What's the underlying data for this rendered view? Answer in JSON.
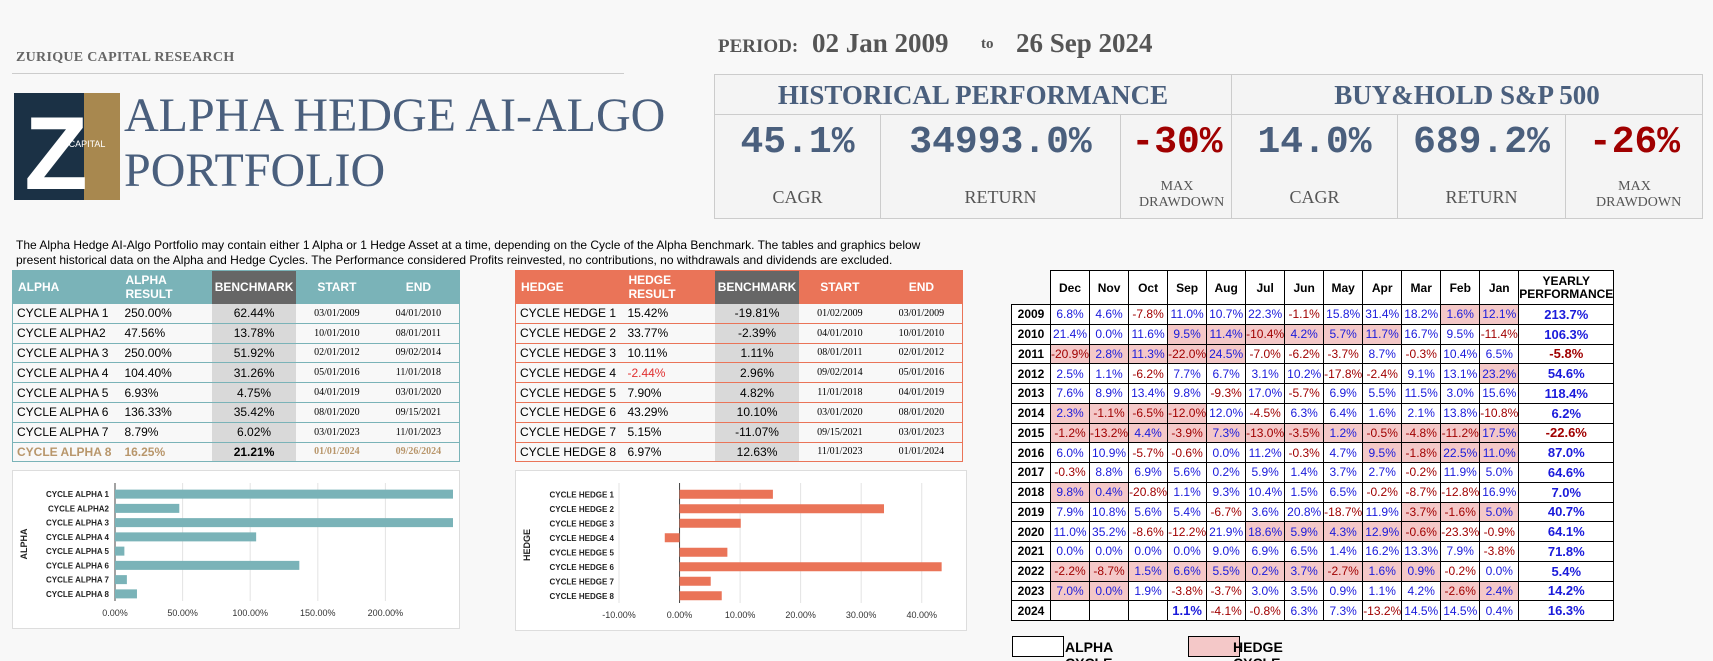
{
  "firm": "ZURIQUE CAPITAL RESEARCH",
  "logo": {
    "letter": "Z",
    "word": "CAPITAL"
  },
  "title": "ALPHA HEDGE AI-ALGO PORTFOLIO",
  "period": {
    "label": "PERIOD:",
    "start": "02 Jan 2009",
    "to": "to",
    "end": "26 Sep 2024"
  },
  "historical": {
    "title": "HISTORICAL PERFORMANCE",
    "cagr": "45.1%",
    "cagr_label": "CAGR",
    "return": "34993.0%",
    "return_label": "RETURN",
    "maxdd": "-30%",
    "maxdd_label": "MAX DRAWDOWN"
  },
  "buyhold": {
    "title": "BUY&HOLD S&P 500",
    "cagr": "14.0%",
    "cagr_label": "CAGR",
    "return": "689.2%",
    "return_label": "RETURN",
    "maxdd": "-26%",
    "maxdd_label": "MAX DRAWDOWN"
  },
  "description": "The Alpha Hedge AI-Algo Portfolio may contain either 1 Alpha or 1 Hedge Asset at a time, depending on the Cycle of the Alpha Benchmark. The tables and graphics below present historical data on the Alpha and Hedge Cycles. The Performance considered Profits reinvested, no contributions, no withdrawals and dividends are excluded.",
  "alpha_table": {
    "headers": [
      "ALPHA",
      "ALPHA RESULT",
      "BENCHMARK",
      "START",
      "END"
    ],
    "rows": [
      [
        "CYCLE ALPHA 1",
        "250.00%",
        "62.44%",
        "03/01/2009",
        "04/01/2010"
      ],
      [
        "CYCLE ALPHA2",
        "47.56%",
        "13.78%",
        "10/01/2010",
        "08/01/2011"
      ],
      [
        "CYCLE ALPHA 3",
        "250.00%",
        "51.92%",
        "02/01/2012",
        "09/02/2014"
      ],
      [
        "CYCLE ALPHA 4",
        "104.40%",
        "31.26%",
        "05/01/2016",
        "11/01/2018"
      ],
      [
        "CYCLE ALPHA 5",
        "6.93%",
        "4.75%",
        "04/01/2019",
        "03/01/2020"
      ],
      [
        "CYCLE ALPHA 6",
        "136.33%",
        "35.42%",
        "08/01/2020",
        "09/15/2021"
      ],
      [
        "CYCLE ALPHA 7",
        "8.79%",
        "6.02%",
        "03/01/2023",
        "11/01/2023"
      ],
      [
        "CYCLE ALPHA 8",
        "16.25%",
        "21.21%",
        "01/01/2024",
        "09/26/2024"
      ]
    ]
  },
  "hedge_table": {
    "headers": [
      "HEDGE",
      "HEDGE RESULT",
      "BENCHMARK",
      "START",
      "END"
    ],
    "rows": [
      [
        "CYCLE HEDGE 1",
        "15.42%",
        "-19.81%",
        "01/02/2009",
        "03/01/2009"
      ],
      [
        "CYCLE HEDGE 2",
        "33.77%",
        "-2.39%",
        "04/01/2010",
        "10/01/2010"
      ],
      [
        "CYCLE HEDGE 3",
        "10.11%",
        "1.11%",
        "08/01/2011",
        "02/01/2012"
      ],
      [
        "CYCLE HEDGE 4",
        "-2.44%",
        "2.96%",
        "09/02/2014",
        "05/01/2016"
      ],
      [
        "CYCLE HEDGE 5",
        "7.90%",
        "4.82%",
        "11/01/2018",
        "04/01/2019"
      ],
      [
        "CYCLE HEDGE 6",
        "43.29%",
        "10.10%",
        "03/01/2020",
        "08/01/2020"
      ],
      [
        "CYCLE HEDGE 7",
        "5.15%",
        "-11.07%",
        "09/15/2021",
        "03/01/2023"
      ],
      [
        "CYCLE HEDGE 8",
        "6.97%",
        "12.63%",
        "11/01/2023",
        "01/01/2024"
      ]
    ]
  },
  "chart_data": [
    {
      "type": "bar",
      "orientation": "horizontal",
      "ylabel": "ALPHA",
      "categories": [
        "CYCLE ALPHA 1",
        "CYCLE ALPHA2",
        "CYCLE ALPHA 3",
        "CYCLE ALPHA 4",
        "CYCLE ALPHA 5",
        "CYCLE ALPHA 6",
        "CYCLE ALPHA 7",
        "CYCLE ALPHA 8"
      ],
      "values": [
        250.0,
        47.56,
        250.0,
        104.4,
        6.93,
        136.33,
        8.79,
        16.25
      ],
      "xticks": [
        "0.00%",
        "50.00%",
        "100.00%",
        "150.00%",
        "200.00%"
      ],
      "xlim": [
        0,
        250
      ],
      "color": "#7ab3b8"
    },
    {
      "type": "bar",
      "orientation": "horizontal",
      "ylabel": "HEDGE",
      "categories": [
        "CYCLE HEDGE 1",
        "CYCLE HEDGE 2",
        "CYCLE HEDGE 3",
        "CYCLE HEDGE 4",
        "CYCLE HEDGE 5",
        "CYCLE HEDGE 6",
        "CYCLE HEDGE 7",
        "CYCLE HEDGE 8"
      ],
      "values": [
        15.42,
        33.77,
        10.11,
        -2.44,
        7.9,
        43.29,
        5.15,
        6.97
      ],
      "xticks": [
        "-10.00%",
        "0.00%",
        "10.00%",
        "20.00%",
        "30.00%",
        "40.00%"
      ],
      "xlim": [
        -10,
        45
      ],
      "color": "#ea7458"
    }
  ],
  "monthly": {
    "months": [
      "Dec",
      "Nov",
      "Oct",
      "Sep",
      "Aug",
      "Jul",
      "Jun",
      "May",
      "Apr",
      "Mar",
      "Feb",
      "Jan"
    ],
    "yearly_header": "YEARLY PERFORMANCE",
    "rows": [
      {
        "year": "2009",
        "vals": [
          "6.8%",
          "4.6%",
          "-7.8%",
          "11.0%",
          "10.7%",
          "22.3%",
          "-1.1%",
          "15.8%",
          "31.4%",
          "18.2%",
          "1.6%",
          "12.1%"
        ],
        "cycle": "AAAAAAAAAAHH",
        "yearly": "213.7%"
      },
      {
        "year": "2010",
        "vals": [
          "21.4%",
          "0.0%",
          "11.6%",
          "9.5%",
          "11.4%",
          "-10.4%",
          "4.2%",
          "5.7%",
          "11.7%",
          "16.7%",
          "9.5%",
          "-11.4%"
        ],
        "cycle": "AAAHHHHHHAAA",
        "yearly": "106.3%"
      },
      {
        "year": "2011",
        "vals": [
          "-20.9%",
          "2.8%",
          "11.3%",
          "-22.0%",
          "24.5%",
          "-7.0%",
          "-6.2%",
          "-3.7%",
          "8.7%",
          "-0.3%",
          "10.4%",
          "6.5%"
        ],
        "cycle": "HHHHHAAAAAAA",
        "yearly": "-5.8%"
      },
      {
        "year": "2012",
        "vals": [
          "2.5%",
          "1.1%",
          "-6.2%",
          "7.7%",
          "6.7%",
          "3.1%",
          "10.2%",
          "-17.8%",
          "-2.4%",
          "9.1%",
          "13.1%",
          "23.2%"
        ],
        "cycle": "AAAAAAAAAAAH",
        "yearly": "54.6%"
      },
      {
        "year": "2013",
        "vals": [
          "7.6%",
          "8.9%",
          "13.4%",
          "9.8%",
          "-9.3%",
          "17.0%",
          "-5.7%",
          "6.9%",
          "5.5%",
          "11.5%",
          "3.0%",
          "15.6%"
        ],
        "cycle": "AAAAAAAAAAAA",
        "yearly": "118.4%"
      },
      {
        "year": "2014",
        "vals": [
          "2.3%",
          "-1.1%",
          "-6.5%",
          "-12.0%",
          "12.0%",
          "-4.5%",
          "6.3%",
          "6.4%",
          "1.6%",
          "2.1%",
          "13.8%",
          "-10.8%"
        ],
        "cycle": "HHHHAAAAAAAA",
        "yearly": "6.2%"
      },
      {
        "year": "2015",
        "vals": [
          "-1.2%",
          "-13.2%",
          "4.4%",
          "-3.9%",
          "7.3%",
          "-13.0%",
          "-3.5%",
          "1.2%",
          "-0.5%",
          "-4.8%",
          "-11.2%",
          "17.5%"
        ],
        "cycle": "HHHHHHHHHHHH",
        "yearly": "-22.6%"
      },
      {
        "year": "2016",
        "vals": [
          "6.0%",
          "10.9%",
          "-5.7%",
          "-0.6%",
          "0.0%",
          "11.2%",
          "-0.3%",
          "4.7%",
          "9.5%",
          "-1.8%",
          "22.5%",
          "11.0%"
        ],
        "cycle": "AAAAAAAAHHHH",
        "yearly": "87.0%"
      },
      {
        "year": "2017",
        "vals": [
          "-0.3%",
          "8.8%",
          "6.9%",
          "5.6%",
          "0.2%",
          "5.9%",
          "1.4%",
          "3.7%",
          "2.7%",
          "-0.2%",
          "11.9%",
          "5.0%"
        ],
        "cycle": "AAAAAAAAAAAA",
        "yearly": "64.6%"
      },
      {
        "year": "2018",
        "vals": [
          "9.8%",
          "0.4%",
          "-20.8%",
          "1.1%",
          "9.3%",
          "10.4%",
          "1.5%",
          "6.5%",
          "-0.2%",
          "-8.7%",
          "-12.8%",
          "16.9%"
        ],
        "cycle": "HHAAAAAAAAAA",
        "yearly": "7.0%"
      },
      {
        "year": "2019",
        "vals": [
          "7.9%",
          "10.8%",
          "5.6%",
          "5.4%",
          "-6.7%",
          "3.6%",
          "20.8%",
          "-18.7%",
          "11.9%",
          "-3.7%",
          "-1.6%",
          "5.0%"
        ],
        "cycle": "AAAAAAAAAHHH",
        "yearly": "40.7%"
      },
      {
        "year": "2020",
        "vals": [
          "11.0%",
          "35.2%",
          "-8.6%",
          "-12.2%",
          "21.9%",
          "18.6%",
          "5.9%",
          "4.3%",
          "12.9%",
          "-0.6%",
          "-23.3%",
          "-0.9%"
        ],
        "cycle": "AAAAAHHHHHAA",
        "yearly": "64.1%"
      },
      {
        "year": "2021",
        "vals": [
          "0.0%",
          "0.0%",
          "0.0%",
          "0.0%",
          "9.0%",
          "6.9%",
          "6.5%",
          "1.4%",
          "16.2%",
          "13.3%",
          "7.9%",
          "-3.8%"
        ],
        "cycle": "AAAAAAAAAAAA",
        "yearly": "71.8%"
      },
      {
        "year": "2022",
        "vals": [
          "-2.2%",
          "-8.7%",
          "1.5%",
          "6.6%",
          "5.5%",
          "0.2%",
          "3.7%",
          "-2.7%",
          "1.6%",
          "0.9%",
          "-0.2%",
          "0.0%"
        ],
        "cycle": "HHHHHHHHHHAA",
        "yearly": "5.4%"
      },
      {
        "year": "2023",
        "vals": [
          "7.0%",
          "0.0%",
          "1.9%",
          "-3.8%",
          "-3.7%",
          "3.0%",
          "3.5%",
          "0.9%",
          "1.1%",
          "4.2%",
          "-2.6%",
          "2.4%"
        ],
        "cycle": "HHAAAAAAAAHH",
        "yearly": "14.2%"
      },
      {
        "year": "2024",
        "vals": [
          "",
          "",
          "",
          "1.1%",
          "-4.1%",
          "-0.8%",
          "6.3%",
          "7.3%",
          "-13.2%",
          "14.5%",
          "14.5%",
          "0.4%"
        ],
        "cycle": "AAAAAAAAAAAA",
        "yearly": "16.3%"
      }
    ]
  },
  "legend": {
    "alpha": "ALPHA CYCLE",
    "hedge": "HEDGE CYCLE"
  }
}
